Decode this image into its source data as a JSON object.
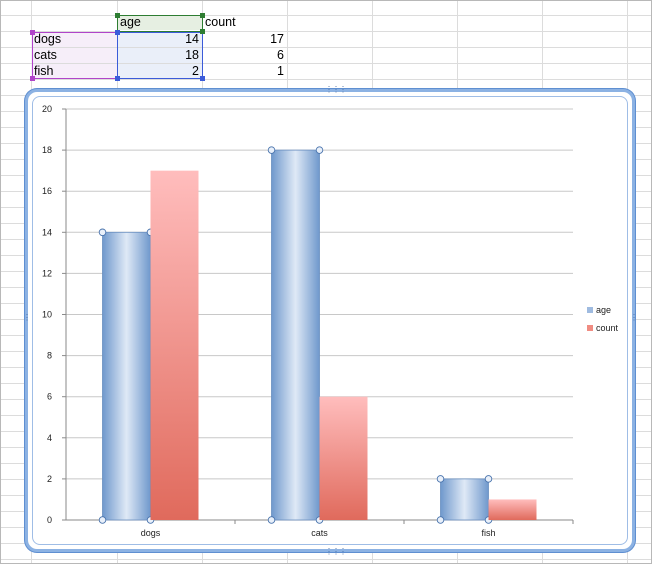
{
  "sheet": {
    "header_row": {
      "b": "age",
      "c": "count"
    },
    "rows": [
      {
        "label": "dogs",
        "age": "14",
        "count": "17"
      },
      {
        "label": "cats",
        "age": "18",
        "count": "6"
      },
      {
        "label": "fish",
        "age": "2",
        "count": "1"
      }
    ]
  },
  "colors": {
    "age_series": "#7fa7d6",
    "count_series": "#f3a29b",
    "selection_purple": "#b044c9",
    "selection_green": "#2e7d32",
    "selection_blue": "#3b5bd9",
    "chart_border": "#8cb2e3"
  },
  "chart_data": {
    "type": "bar",
    "categories": [
      "dogs",
      "cats",
      "fish"
    ],
    "series": [
      {
        "name": "age",
        "values": [
          14,
          18,
          2
        ]
      },
      {
        "name": "count",
        "values": [
          17,
          6,
          1
        ]
      }
    ],
    "ylim": [
      0,
      20
    ],
    "yticks": [
      "0",
      "2",
      "4",
      "6",
      "8",
      "10",
      "12",
      "14",
      "16",
      "18",
      "20"
    ],
    "grid": true,
    "legend": "right",
    "title": "",
    "xlabel": "",
    "ylabel": ""
  }
}
